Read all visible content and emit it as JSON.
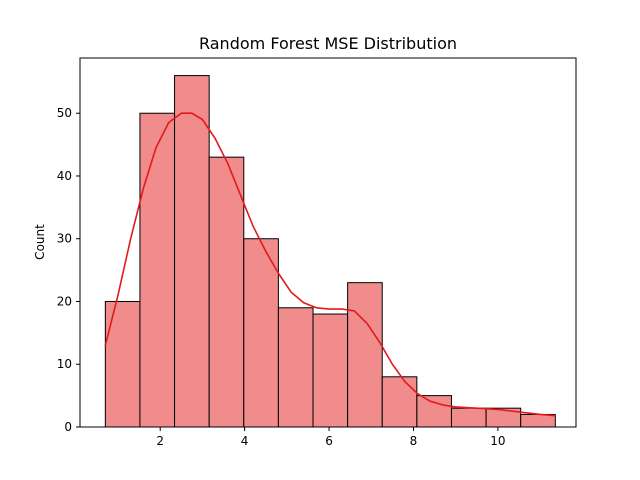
{
  "chart_data": {
    "type": "bar",
    "title": "Random Forest MSE Distribution",
    "xlabel": "",
    "ylabel": "Count",
    "xlim": [
      0.1,
      11.85
    ],
    "ylim": [
      0,
      58.8
    ],
    "x_ticks": [
      2,
      4,
      6,
      8,
      10
    ],
    "y_ticks": [
      0,
      10,
      20,
      30,
      40,
      50
    ],
    "bin_edges": [
      0.7,
      1.52,
      2.34,
      3.16,
      3.98,
      4.8,
      5.62,
      6.44,
      7.26,
      8.08,
      8.9,
      9.72,
      10.54,
      11.36
    ],
    "values": [
      20,
      50,
      56,
      43,
      30,
      19,
      18,
      23,
      8,
      5,
      3,
      3,
      2
    ],
    "kde": {
      "x": [
        0.7,
        1.0,
        1.3,
        1.6,
        1.9,
        2.2,
        2.5,
        2.75,
        3.0,
        3.3,
        3.6,
        3.9,
        4.2,
        4.5,
        4.8,
        5.1,
        5.4,
        5.7,
        6.0,
        6.3,
        6.6,
        6.9,
        7.2,
        7.5,
        7.8,
        8.1,
        8.4,
        8.7,
        9.0,
        9.5,
        10.0,
        10.5,
        11.0,
        11.36
      ],
      "y": [
        13,
        21,
        30,
        38,
        44.5,
        48.5,
        50,
        50,
        49,
        46,
        42,
        37,
        32,
        28,
        24.5,
        21.5,
        19.8,
        19,
        18.8,
        18.8,
        18.5,
        16.5,
        13.5,
        10,
        7.2,
        5.3,
        4.1,
        3.5,
        3.2,
        3,
        2.8,
        2.4,
        2,
        1.8
      ]
    },
    "grid": false,
    "legend": "none",
    "colors": {
      "bar_fill": "#f08c8c",
      "bar_edge": "#000000",
      "kde_line": "#e31a1c",
      "axes": "#000000",
      "background": "#ffffff"
    }
  }
}
